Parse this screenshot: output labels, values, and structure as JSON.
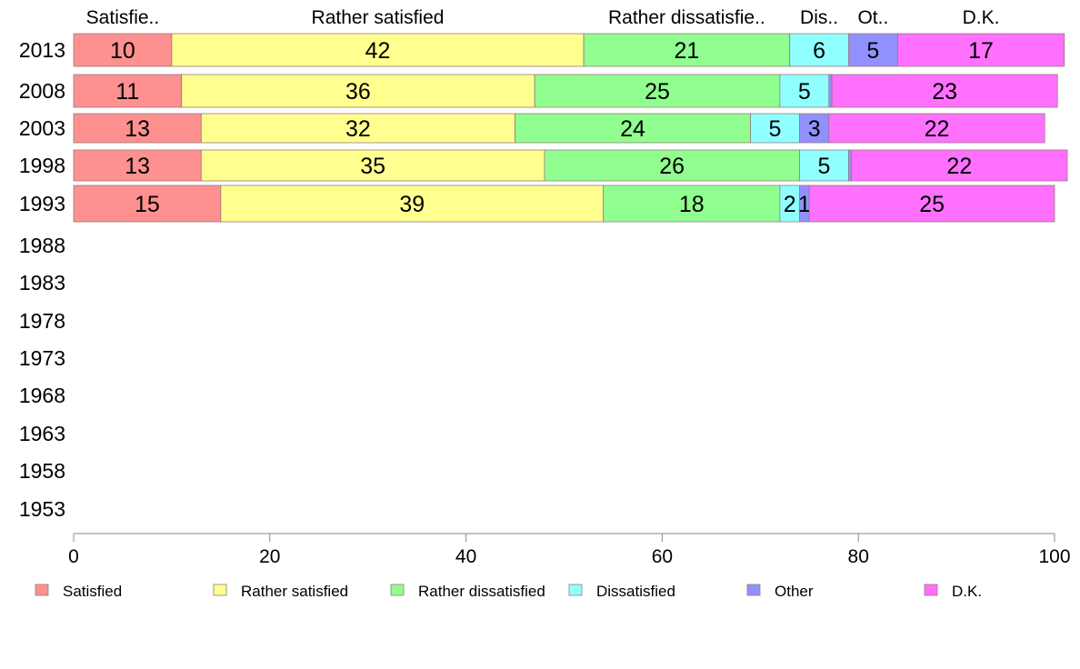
{
  "chart_data": {
    "type": "bar",
    "orientation": "horizontal",
    "stacked": true,
    "categories": [
      "2013",
      "2008",
      "2003",
      "1998",
      "1993",
      "1988",
      "1983",
      "1978",
      "1973",
      "1968",
      "1963",
      "1958",
      "1953"
    ],
    "series": [
      {
        "name": "Satisfied",
        "color": "#ff9090",
        "values": [
          10,
          11,
          13,
          13,
          15,
          null,
          null,
          null,
          null,
          null,
          null,
          null,
          null
        ]
      },
      {
        "name": "Rather satisfied",
        "color": "#ffff90",
        "values": [
          42,
          36,
          32,
          35,
          39,
          null,
          null,
          null,
          null,
          null,
          null,
          null,
          null
        ]
      },
      {
        "name": "Rather dissatisfied",
        "color": "#90ff90",
        "values": [
          21,
          25,
          24,
          26,
          18,
          null,
          null,
          null,
          null,
          null,
          null,
          null,
          null
        ]
      },
      {
        "name": "Dissatisfied",
        "color": "#90ffff",
        "values": [
          6,
          5,
          5,
          5,
          2,
          null,
          null,
          null,
          null,
          null,
          null,
          null,
          null
        ]
      },
      {
        "name": "Other",
        "color": "#9090ff",
        "values": [
          5,
          0.3,
          3,
          0.3,
          1,
          null,
          null,
          null,
          null,
          null,
          null,
          null,
          null
        ]
      },
      {
        "name": "D.K.",
        "color": "#ff70ff",
        "values": [
          17,
          23,
          22,
          22,
          25,
          null,
          null,
          null,
          null,
          null,
          null,
          null,
          null
        ]
      }
    ],
    "data_labels": [
      [
        "10",
        "42",
        "21",
        "6",
        "5",
        "17"
      ],
      [
        "11",
        "36",
        "25",
        "5",
        "",
        "23"
      ],
      [
        "13",
        "32",
        "24",
        "5",
        "3",
        "22"
      ],
      [
        "13",
        "35",
        "26",
        "5",
        "",
        "22"
      ],
      [
        "15",
        "39",
        "18",
        "2",
        "1",
        "25"
      ]
    ],
    "top_labels": [
      "Satisfie..",
      "Rather satisfied",
      "Rather dissatisfie..",
      "Dis..",
      "Ot..",
      "D.K."
    ],
    "xlim": [
      0,
      100
    ],
    "xticks": [
      "0",
      "20",
      "40",
      "60",
      "80",
      "100"
    ],
    "title": "",
    "xlabel": "",
    "ylabel": "",
    "grid": false,
    "legend_position": "bottom"
  }
}
